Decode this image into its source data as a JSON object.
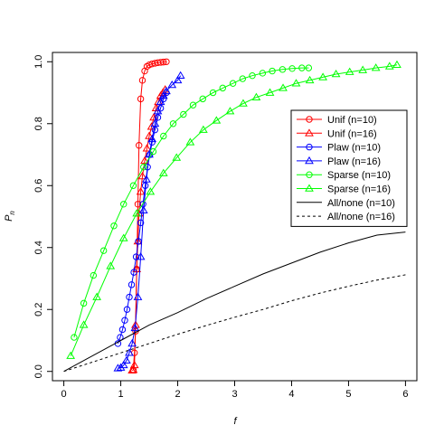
{
  "chart_data": {
    "type": "line",
    "title": "",
    "xlabel": "f",
    "ylabel": "P",
    "ylabel_subscript": "n",
    "xlim": [
      -0.2,
      6.2
    ],
    "ylim": [
      -0.03,
      1.03
    ],
    "xticks": [
      0,
      1,
      2,
      3,
      4,
      5,
      6
    ],
    "yticks": [
      0.0,
      0.2,
      0.4,
      0.6,
      0.8,
      1.0
    ],
    "xtick_labels": [
      "0",
      "1",
      "2",
      "3",
      "4",
      "5",
      "6"
    ],
    "ytick_labels": [
      "0.0",
      "0.2",
      "0.4",
      "0.6",
      "0.8",
      "1.0"
    ],
    "grid": false,
    "legend_position": "top-right",
    "series": [
      {
        "name": "Unif (n=10)",
        "color": "#ff0000",
        "marker": "circle",
        "line": "solid",
        "points": [
          [
            1.22,
            0.005
          ],
          [
            1.24,
            0.06
          ],
          [
            1.26,
            0.13
          ],
          [
            1.28,
            0.33
          ],
          [
            1.3,
            0.54
          ],
          [
            1.32,
            0.73
          ],
          [
            1.35,
            0.88
          ],
          [
            1.38,
            0.94
          ],
          [
            1.42,
            0.97
          ],
          [
            1.46,
            0.985
          ],
          [
            1.5,
            0.99
          ],
          [
            1.55,
            0.993
          ],
          [
            1.6,
            0.995
          ],
          [
            1.65,
            0.997
          ],
          [
            1.7,
            0.998
          ],
          [
            1.75,
            0.999
          ],
          [
            1.8,
            1.0
          ]
        ]
      },
      {
        "name": "Unif (n=16)",
        "color": "#ff0000",
        "marker": "triangle",
        "line": "solid",
        "points": [
          [
            1.2,
            0.003
          ],
          [
            1.22,
            0.005
          ],
          [
            1.24,
            0.02
          ],
          [
            1.26,
            0.15
          ],
          [
            1.28,
            0.33
          ],
          [
            1.3,
            0.42
          ],
          [
            1.32,
            0.51
          ],
          [
            1.35,
            0.58
          ],
          [
            1.38,
            0.63
          ],
          [
            1.42,
            0.68
          ],
          [
            1.46,
            0.72
          ],
          [
            1.5,
            0.76
          ],
          [
            1.54,
            0.79
          ],
          [
            1.58,
            0.82
          ],
          [
            1.62,
            0.85
          ],
          [
            1.66,
            0.87
          ],
          [
            1.7,
            0.89
          ],
          [
            1.74,
            0.9
          ],
          [
            1.78,
            0.91
          ]
        ]
      },
      {
        "name": "Plaw (n=10)",
        "color": "#0000ff",
        "marker": "circle",
        "line": "solid",
        "points": [
          [
            0.95,
            0.09
          ],
          [
            0.99,
            0.11
          ],
          [
            1.03,
            0.135
          ],
          [
            1.07,
            0.165
          ],
          [
            1.11,
            0.2
          ],
          [
            1.15,
            0.24
          ],
          [
            1.19,
            0.28
          ],
          [
            1.23,
            0.32
          ],
          [
            1.27,
            0.37
          ],
          [
            1.31,
            0.42
          ],
          [
            1.35,
            0.48
          ],
          [
            1.39,
            0.54
          ],
          [
            1.43,
            0.6
          ],
          [
            1.47,
            0.66
          ],
          [
            1.51,
            0.7
          ],
          [
            1.55,
            0.74
          ],
          [
            1.6,
            0.78
          ],
          [
            1.65,
            0.82
          ],
          [
            1.7,
            0.85
          ],
          [
            1.75,
            0.88
          ],
          [
            1.8,
            0.9
          ]
        ]
      },
      {
        "name": "Plaw (n=16)",
        "color": "#0000ff",
        "marker": "triangle",
        "line": "solid",
        "points": [
          [
            0.95,
            0.01
          ],
          [
            1.0,
            0.012
          ],
          [
            1.05,
            0.02
          ],
          [
            1.1,
            0.035
          ],
          [
            1.15,
            0.06
          ],
          [
            1.2,
            0.09
          ],
          [
            1.25,
            0.14
          ],
          [
            1.3,
            0.24
          ],
          [
            1.35,
            0.37
          ],
          [
            1.4,
            0.52
          ],
          [
            1.45,
            0.62
          ],
          [
            1.5,
            0.7
          ],
          [
            1.55,
            0.75
          ],
          [
            1.6,
            0.8
          ],
          [
            1.65,
            0.84
          ],
          [
            1.7,
            0.87
          ],
          [
            1.75,
            0.89
          ],
          [
            1.8,
            0.905
          ],
          [
            1.9,
            0.925
          ],
          [
            2.0,
            0.94
          ],
          [
            2.05,
            0.955
          ]
        ]
      },
      {
        "name": "Sparse (n=10)",
        "color": "#00ff00",
        "marker": "circle",
        "line": "solid",
        "points": [
          [
            0.18,
            0.11
          ],
          [
            0.35,
            0.22
          ],
          [
            0.52,
            0.31
          ],
          [
            0.7,
            0.39
          ],
          [
            0.88,
            0.47
          ],
          [
            1.05,
            0.54
          ],
          [
            1.22,
            0.6
          ],
          [
            1.4,
            0.66
          ],
          [
            1.57,
            0.71
          ],
          [
            1.75,
            0.76
          ],
          [
            1.92,
            0.8
          ],
          [
            2.1,
            0.83
          ],
          [
            2.27,
            0.86
          ],
          [
            2.44,
            0.88
          ],
          [
            2.62,
            0.9
          ],
          [
            2.79,
            0.915
          ],
          [
            2.97,
            0.93
          ],
          [
            3.14,
            0.945
          ],
          [
            3.31,
            0.955
          ],
          [
            3.49,
            0.963
          ],
          [
            3.66,
            0.97
          ],
          [
            3.84,
            0.975
          ],
          [
            4.01,
            0.978
          ],
          [
            4.18,
            0.98
          ],
          [
            4.3,
            0.98
          ]
        ]
      },
      {
        "name": "Sparse (n=16)",
        "color": "#00ff00",
        "marker": "triangle",
        "line": "solid",
        "points": [
          [
            0.12,
            0.05
          ],
          [
            0.35,
            0.15
          ],
          [
            0.58,
            0.24
          ],
          [
            0.82,
            0.34
          ],
          [
            1.05,
            0.43
          ],
          [
            1.28,
            0.51
          ],
          [
            1.52,
            0.58
          ],
          [
            1.75,
            0.64
          ],
          [
            1.98,
            0.69
          ],
          [
            2.22,
            0.74
          ],
          [
            2.45,
            0.78
          ],
          [
            2.68,
            0.81
          ],
          [
            2.92,
            0.84
          ],
          [
            3.15,
            0.865
          ],
          [
            3.38,
            0.885
          ],
          [
            3.62,
            0.9
          ],
          [
            3.85,
            0.915
          ],
          [
            4.08,
            0.93
          ],
          [
            4.32,
            0.94
          ],
          [
            4.55,
            0.95
          ],
          [
            4.78,
            0.96
          ],
          [
            5.02,
            0.967
          ],
          [
            5.25,
            0.973
          ],
          [
            5.48,
            0.98
          ],
          [
            5.72,
            0.985
          ],
          [
            5.85,
            0.99
          ]
        ]
      },
      {
        "name": "All/none (n=10)",
        "color": "#000000",
        "marker": "none",
        "line": "solid",
        "points": [
          [
            0,
            0.0
          ],
          [
            0.5,
            0.05
          ],
          [
            1.0,
            0.1
          ],
          [
            1.5,
            0.15
          ],
          [
            2.0,
            0.19
          ],
          [
            2.5,
            0.235
          ],
          [
            3.0,
            0.275
          ],
          [
            3.5,
            0.315
          ],
          [
            4.0,
            0.35
          ],
          [
            4.5,
            0.385
          ],
          [
            5.0,
            0.415
          ],
          [
            5.5,
            0.44
          ],
          [
            6.0,
            0.45
          ]
        ]
      },
      {
        "name": "All/none (n=16)",
        "color": "#000000",
        "marker": "none",
        "line": "dashed",
        "points": [
          [
            0,
            0.0
          ],
          [
            0.5,
            0.03
          ],
          [
            1.0,
            0.06
          ],
          [
            1.5,
            0.09
          ],
          [
            2.0,
            0.12
          ],
          [
            2.5,
            0.148
          ],
          [
            3.0,
            0.175
          ],
          [
            3.5,
            0.2
          ],
          [
            4.0,
            0.228
          ],
          [
            4.5,
            0.253
          ],
          [
            5.0,
            0.275
          ],
          [
            5.5,
            0.295
          ],
          [
            6.0,
            0.312
          ]
        ]
      }
    ]
  }
}
